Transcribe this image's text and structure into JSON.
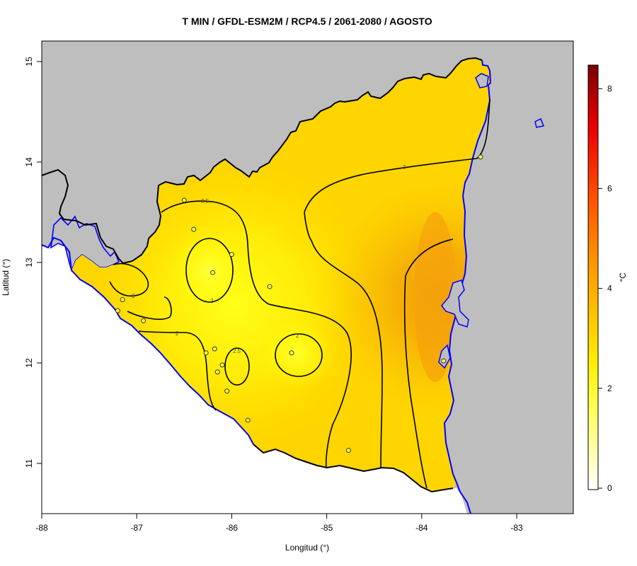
{
  "title": "T MIN / GFDL-ESM2M / RCP4.5 / 2061-2080 / AGOSTO",
  "xlabel": "Longitud (°)",
  "ylabel": "Latitud (°)",
  "x_ticks": [
    "-88",
    "-87",
    "-86",
    "-85",
    "-84",
    "-83"
  ],
  "y_ticks": [
    "11",
    "12",
    "13",
    "14",
    "15"
  ],
  "colorbar": {
    "unit": "°C",
    "ticks": [
      "0",
      "2",
      "4",
      "6",
      "8"
    ],
    "range": [
      0,
      8.5
    ],
    "colors": [
      "#ffffff",
      "#ffff00",
      "#ffcc00",
      "#ff8800",
      "#ff2200",
      "#cc0000",
      "#7a0000"
    ]
  },
  "contour_labels": [
    "2.5",
    "3",
    "2",
    "2",
    "2",
    "2.5",
    "3"
  ],
  "colors": {
    "land_background": "#bebebe",
    "country_fill": "#ffd700",
    "coast_line": "#0000ff",
    "border_line": "#000000",
    "contour_line": "#000000",
    "station_fill": "#ffff33"
  },
  "chart_data": {
    "type": "heatmap",
    "title": "T MIN / GFDL-ESM2M / RCP4.5 / 2061-2080 / AGOSTO",
    "xlabel": "Longitud (°)",
    "ylabel": "Latitud (°)",
    "xlim": [
      -88,
      -82.4
    ],
    "ylim": [
      10.5,
      15.2
    ],
    "value_unit": "°C",
    "contour_levels": [
      2,
      2.5,
      3
    ],
    "stations": [
      {
        "lon": -86.5,
        "lat": 13.62
      },
      {
        "lon": -86.4,
        "lat": 13.33
      },
      {
        "lon": -86.0,
        "lat": 13.08
      },
      {
        "lon": -86.2,
        "lat": 12.9
      },
      {
        "lon": -85.6,
        "lat": 12.76
      },
      {
        "lon": -87.15,
        "lat": 12.63
      },
      {
        "lon": -87.2,
        "lat": 12.52
      },
      {
        "lon": -86.93,
        "lat": 12.42
      },
      {
        "lon": -86.18,
        "lat": 12.14
      },
      {
        "lon": -86.27,
        "lat": 12.1
      },
      {
        "lon": -85.37,
        "lat": 12.1
      },
      {
        "lon": -86.1,
        "lat": 11.98
      },
      {
        "lon": -86.15,
        "lat": 11.91
      },
      {
        "lon": -86.05,
        "lat": 11.72
      },
      {
        "lon": -85.83,
        "lat": 11.43
      },
      {
        "lon": -84.77,
        "lat": 11.13
      },
      {
        "lon": -83.77,
        "lat": 12.02
      },
      {
        "lon": -83.38,
        "lat": 14.05
      }
    ]
  }
}
